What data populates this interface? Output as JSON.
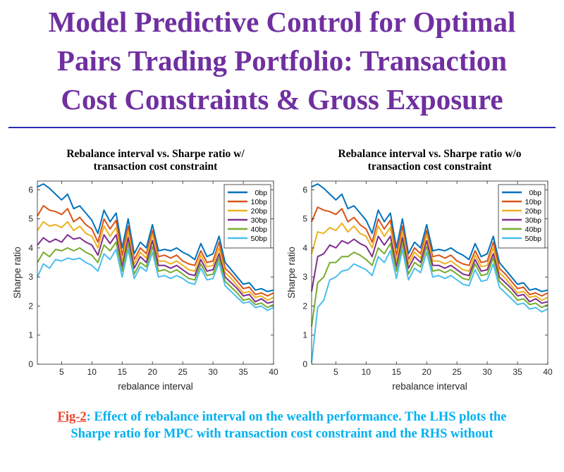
{
  "slide": {
    "title_lines": [
      "Model Predictive Control for Optimal",
      "Pairs Trading Portfolio: Transaction",
      "Cost Constraints & Gross Exposure"
    ],
    "caption_label": "Fig-2",
    "caption_line1": ": Effect of rebalance interval on the wealth performance. The LHS plots the",
    "caption_line2": "Sharpe ratio for MPC with transaction cost constraint and the RHS without"
  },
  "chart_data": [
    {
      "type": "line",
      "title_lines": [
        "Rebalance interval vs. Sharpe ratio w/",
        "transaction cost constraint"
      ],
      "xlabel": "rebalance interval",
      "ylabel": "Sharpe ratio",
      "xlim": [
        1,
        40
      ],
      "ylim": [
        0,
        6.3
      ],
      "xticks": [
        5,
        10,
        15,
        20,
        25,
        30,
        35,
        40
      ],
      "yticks": [
        0,
        1,
        2,
        3,
        4,
        5,
        6
      ],
      "x": [
        1,
        2,
        3,
        4,
        5,
        6,
        7,
        8,
        9,
        10,
        11,
        12,
        13,
        14,
        15,
        16,
        17,
        18,
        19,
        20,
        21,
        22,
        23,
        24,
        25,
        26,
        27,
        28,
        29,
        30,
        31,
        32,
        33,
        34,
        35,
        36,
        37,
        38,
        39,
        40
      ],
      "series": [
        {
          "name": "0bp",
          "color": "#0072bd",
          "values": [
            6.1,
            6.2,
            6.05,
            5.85,
            5.65,
            5.85,
            5.35,
            5.45,
            5.2,
            4.95,
            4.5,
            5.3,
            4.9,
            5.2,
            4.0,
            5.0,
            3.8,
            4.2,
            4.0,
            4.8,
            3.9,
            3.95,
            3.9,
            4.0,
            3.85,
            3.75,
            3.6,
            4.15,
            3.7,
            3.8,
            4.4,
            3.5,
            3.25,
            3.0,
            2.75,
            2.8,
            2.55,
            2.6,
            2.5,
            2.55
          ]
        },
        {
          "name": "10bp",
          "color": "#d95319",
          "values": [
            5.1,
            5.45,
            5.3,
            5.25,
            5.15,
            5.35,
            4.9,
            5.05,
            4.8,
            4.65,
            4.2,
            5.0,
            4.65,
            4.95,
            3.75,
            4.75,
            3.6,
            4.0,
            3.8,
            4.6,
            3.7,
            3.75,
            3.65,
            3.75,
            3.55,
            3.45,
            3.4,
            3.9,
            3.5,
            3.55,
            4.2,
            3.3,
            3.1,
            2.85,
            2.6,
            2.65,
            2.4,
            2.45,
            2.35,
            2.45
          ]
        },
        {
          "name": "20bp",
          "color": "#edb120",
          "values": [
            4.6,
            4.9,
            4.75,
            4.8,
            4.7,
            4.9,
            4.6,
            4.75,
            4.5,
            4.4,
            4.0,
            4.75,
            4.4,
            4.7,
            3.55,
            4.55,
            3.45,
            3.85,
            3.65,
            4.45,
            3.55,
            3.55,
            3.45,
            3.55,
            3.4,
            3.25,
            3.2,
            3.75,
            3.35,
            3.4,
            4.0,
            3.15,
            2.95,
            2.7,
            2.45,
            2.5,
            2.3,
            2.35,
            2.2,
            2.3
          ]
        },
        {
          "name": "30bp",
          "color": "#7e2f8e",
          "values": [
            4.1,
            4.35,
            4.2,
            4.3,
            4.2,
            4.45,
            4.3,
            4.35,
            4.2,
            4.1,
            3.75,
            4.45,
            4.15,
            4.45,
            3.35,
            4.35,
            3.3,
            3.7,
            3.5,
            4.25,
            3.4,
            3.4,
            3.3,
            3.4,
            3.25,
            3.1,
            3.05,
            3.6,
            3.2,
            3.25,
            3.8,
            3.0,
            2.8,
            2.6,
            2.35,
            2.4,
            2.15,
            2.25,
            2.1,
            2.15
          ]
        },
        {
          "name": "40bp",
          "color": "#77ac30",
          "values": [
            3.5,
            3.85,
            3.7,
            3.95,
            3.9,
            4.0,
            3.9,
            4.0,
            3.85,
            3.75,
            3.5,
            4.1,
            3.9,
            4.2,
            3.2,
            4.15,
            3.1,
            3.5,
            3.35,
            4.05,
            3.2,
            3.25,
            3.15,
            3.25,
            3.1,
            2.95,
            2.9,
            3.45,
            3.05,
            3.1,
            3.65,
            2.85,
            2.65,
            2.45,
            2.2,
            2.25,
            2.05,
            2.1,
            1.95,
            2.05
          ]
        },
        {
          "name": "50bp",
          "color": "#4dbeee",
          "values": [
            3.0,
            3.45,
            3.3,
            3.6,
            3.55,
            3.65,
            3.6,
            3.65,
            3.5,
            3.4,
            3.2,
            3.8,
            3.6,
            3.95,
            3.0,
            3.95,
            2.95,
            3.35,
            3.2,
            3.85,
            3.0,
            3.05,
            2.95,
            3.05,
            2.95,
            2.8,
            2.75,
            3.3,
            2.9,
            2.95,
            3.5,
            2.7,
            2.5,
            2.3,
            2.1,
            2.15,
            1.95,
            2.0,
            1.85,
            1.95
          ]
        }
      ]
    },
    {
      "type": "line",
      "title_lines": [
        "Rebalance interval vs. Sharpe ratio w/o",
        "transaction cost constraint"
      ],
      "xlabel": "rebalance interval",
      "ylabel": "Sharpe ratio",
      "xlim": [
        1,
        40
      ],
      "ylim": [
        0,
        6.3
      ],
      "xticks": [
        5,
        10,
        15,
        20,
        25,
        30,
        35,
        40
      ],
      "yticks": [
        0,
        1,
        2,
        3,
        4,
        5,
        6
      ],
      "x": [
        1,
        2,
        3,
        4,
        5,
        6,
        7,
        8,
        9,
        10,
        11,
        12,
        13,
        14,
        15,
        16,
        17,
        18,
        19,
        20,
        21,
        22,
        23,
        24,
        25,
        26,
        27,
        28,
        29,
        30,
        31,
        32,
        33,
        34,
        35,
        36,
        37,
        38,
        39,
        40
      ],
      "series": [
        {
          "name": "0bp",
          "color": "#0072bd",
          "values": [
            6.1,
            6.2,
            6.05,
            5.85,
            5.65,
            5.85,
            5.35,
            5.45,
            5.2,
            4.95,
            4.5,
            5.3,
            4.9,
            5.2,
            4.0,
            5.0,
            3.8,
            4.2,
            4.0,
            4.8,
            3.9,
            3.95,
            3.9,
            4.0,
            3.85,
            3.75,
            3.6,
            4.15,
            3.7,
            3.8,
            4.4,
            3.5,
            3.25,
            3.0,
            2.75,
            2.8,
            2.55,
            2.6,
            2.5,
            2.55
          ]
        },
        {
          "name": "10bp",
          "color": "#d95319",
          "values": [
            4.9,
            5.4,
            5.3,
            5.25,
            5.15,
            5.35,
            4.9,
            5.05,
            4.8,
            4.65,
            4.2,
            5.0,
            4.65,
            4.95,
            3.75,
            4.75,
            3.6,
            4.0,
            3.8,
            4.6,
            3.7,
            3.75,
            3.65,
            3.75,
            3.55,
            3.45,
            3.4,
            3.9,
            3.5,
            3.55,
            4.2,
            3.3,
            3.1,
            2.85,
            2.6,
            2.65,
            2.4,
            2.45,
            2.35,
            2.45
          ]
        },
        {
          "name": "20bp",
          "color": "#edb120",
          "values": [
            3.8,
            4.55,
            4.5,
            4.7,
            4.6,
            4.85,
            4.55,
            4.75,
            4.5,
            4.4,
            4.0,
            4.75,
            4.4,
            4.7,
            3.55,
            4.55,
            3.45,
            3.85,
            3.65,
            4.45,
            3.55,
            3.55,
            3.45,
            3.55,
            3.4,
            3.25,
            3.2,
            3.75,
            3.35,
            3.4,
            4.0,
            3.15,
            2.95,
            2.7,
            2.45,
            2.5,
            2.3,
            2.35,
            2.2,
            2.3
          ]
        },
        {
          "name": "30bp",
          "color": "#7e2f8e",
          "values": [
            2.5,
            3.7,
            3.8,
            4.1,
            4.0,
            4.25,
            4.15,
            4.3,
            4.15,
            4.05,
            3.7,
            4.4,
            4.1,
            4.4,
            3.35,
            4.35,
            3.3,
            3.7,
            3.5,
            4.25,
            3.4,
            3.4,
            3.3,
            3.4,
            3.25,
            3.1,
            3.05,
            3.6,
            3.2,
            3.25,
            3.8,
            3.0,
            2.8,
            2.6,
            2.35,
            2.4,
            2.15,
            2.25,
            2.1,
            2.15
          ]
        },
        {
          "name": "40bp",
          "color": "#77ac30",
          "values": [
            1.3,
            2.8,
            3.0,
            3.5,
            3.5,
            3.7,
            3.7,
            3.85,
            3.75,
            3.6,
            3.4,
            4.0,
            3.8,
            4.15,
            3.2,
            4.15,
            3.1,
            3.5,
            3.35,
            4.05,
            3.2,
            3.25,
            3.15,
            3.25,
            3.1,
            2.95,
            2.9,
            3.45,
            3.05,
            3.1,
            3.65,
            2.85,
            2.65,
            2.45,
            2.2,
            2.25,
            2.05,
            2.1,
            1.95,
            2.05
          ]
        },
        {
          "name": "50bp",
          "color": "#4dbeee",
          "values": [
            0.05,
            1.95,
            2.2,
            2.9,
            3.0,
            3.2,
            3.25,
            3.45,
            3.35,
            3.25,
            3.05,
            3.7,
            3.5,
            3.9,
            2.95,
            3.95,
            2.9,
            3.3,
            3.15,
            3.85,
            3.0,
            3.05,
            2.95,
            3.05,
            2.9,
            2.75,
            2.7,
            3.25,
            2.85,
            2.9,
            3.45,
            2.65,
            2.45,
            2.25,
            2.05,
            2.1,
            1.9,
            1.95,
            1.8,
            1.9
          ]
        }
      ]
    }
  ]
}
